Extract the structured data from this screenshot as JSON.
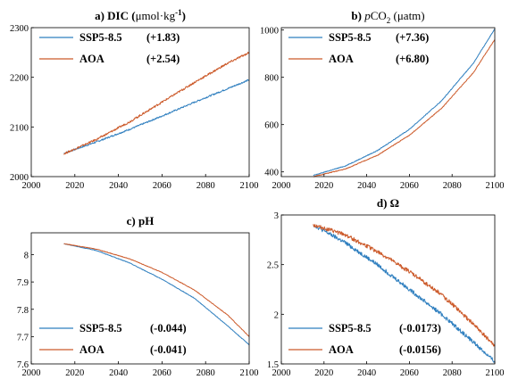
{
  "colors": {
    "ssp": "#2f7fbf",
    "aoa": "#cc5a2a",
    "axis": "#000000"
  },
  "chart_data": [
    {
      "type": "line",
      "title": {
        "main": "a) DIC (",
        "unit": "μmol·kg",
        "sup": "-1",
        "tail": ")"
      },
      "xlim": [
        2000,
        2100
      ],
      "ylim": [
        2000,
        2300
      ],
      "xticks": [
        2000,
        2020,
        2040,
        2060,
        2080,
        2100
      ],
      "yticks": [
        2000,
        2100,
        2200,
        2300
      ],
      "legend": "top-left",
      "series": [
        {
          "name": "SSP5-8.5",
          "stat": "(+1.83)",
          "color": "ssp",
          "x": [
            2015,
            2030,
            2045,
            2060,
            2075,
            2090,
            2100
          ],
          "y": [
            2047,
            2070,
            2095,
            2122,
            2150,
            2177,
            2195
          ],
          "noise": 1.5
        },
        {
          "name": "AOA",
          "stat": "(+2.54)",
          "color": "aoa",
          "x": [
            2015,
            2030,
            2045,
            2060,
            2075,
            2090,
            2100
          ],
          "y": [
            2046,
            2075,
            2110,
            2150,
            2190,
            2228,
            2250
          ],
          "noise": 2
        }
      ]
    },
    {
      "type": "line",
      "title": {
        "main": "b) ",
        "italic": "p",
        "chem": "CO",
        "sub": "2",
        "tail": " (μatm)"
      },
      "xlim": [
        2000,
        2100
      ],
      "ylim": [
        380,
        1010
      ],
      "xticks": [
        2000,
        2020,
        2040,
        2060,
        2080,
        2100
      ],
      "yticks": [
        400,
        600,
        800,
        1000
      ],
      "legend": "top-left",
      "series": [
        {
          "name": "SSP5-8.5",
          "stat": "(+7.36)",
          "color": "ssp",
          "x": [
            2015,
            2030,
            2045,
            2060,
            2075,
            2090,
            2100
          ],
          "y": [
            385,
            425,
            490,
            580,
            700,
            860,
            1005
          ],
          "noise": 1.5
        },
        {
          "name": "AOA",
          "stat": "(+6.80)",
          "color": "aoa",
          "x": [
            2015,
            2030,
            2045,
            2060,
            2075,
            2090,
            2100
          ],
          "y": [
            380,
            412,
            470,
            555,
            668,
            820,
            960
          ],
          "noise": 1.5
        }
      ]
    },
    {
      "type": "line",
      "title": {
        "main": "c) pH"
      },
      "xlim": [
        2000,
        2100
      ],
      "ylim": [
        7.6,
        8.08
      ],
      "xticks": [
        2000,
        2020,
        2040,
        2060,
        2080,
        2100
      ],
      "yticks": [
        7.6,
        7.7,
        7.8,
        7.9,
        8.0
      ],
      "ytickLabels": [
        "7.6",
        "7.7",
        "7.8",
        "7.9",
        "8"
      ],
      "legend": "bottom-left",
      "series": [
        {
          "name": "SSP5-8.5",
          "stat": "(-0.044)",
          "color": "ssp",
          "x": [
            2015,
            2030,
            2045,
            2060,
            2075,
            2090,
            2100
          ],
          "y": [
            8.04,
            8.015,
            7.97,
            7.91,
            7.84,
            7.74,
            7.67
          ],
          "noise": 0.001
        },
        {
          "name": "AOA",
          "stat": "(-0.041)",
          "color": "aoa",
          "x": [
            2015,
            2030,
            2045,
            2060,
            2075,
            2090,
            2100
          ],
          "y": [
            8.04,
            8.02,
            7.985,
            7.935,
            7.87,
            7.78,
            7.7
          ],
          "noise": 0.001
        }
      ]
    },
    {
      "type": "line",
      "title": {
        "main": "d) Ω"
      },
      "xlim": [
        2000,
        2100
      ],
      "ylim": [
        1.5,
        3.0
      ],
      "xticks": [
        2000,
        2020,
        2040,
        2060,
        2080,
        2100
      ],
      "yticks": [
        1.5,
        2.0,
        2.5,
        3.0
      ],
      "ytickLabels": [
        "1.5",
        "2",
        "2.5",
        "3"
      ],
      "legend": "bottom-left",
      "series": [
        {
          "name": "SSP5-8.5",
          "stat": "(-0.0173)",
          "color": "ssp",
          "x": [
            2015,
            2030,
            2045,
            2060,
            2075,
            2090,
            2100
          ],
          "y": [
            2.9,
            2.72,
            2.5,
            2.25,
            2.0,
            1.72,
            1.52
          ],
          "noise": 0.02
        },
        {
          "name": "AOA",
          "stat": "(-0.0156)",
          "color": "aoa",
          "x": [
            2015,
            2030,
            2045,
            2060,
            2075,
            2090,
            2100
          ],
          "y": [
            2.9,
            2.8,
            2.63,
            2.43,
            2.2,
            1.9,
            1.68
          ],
          "noise": 0.02
        }
      ]
    }
  ]
}
